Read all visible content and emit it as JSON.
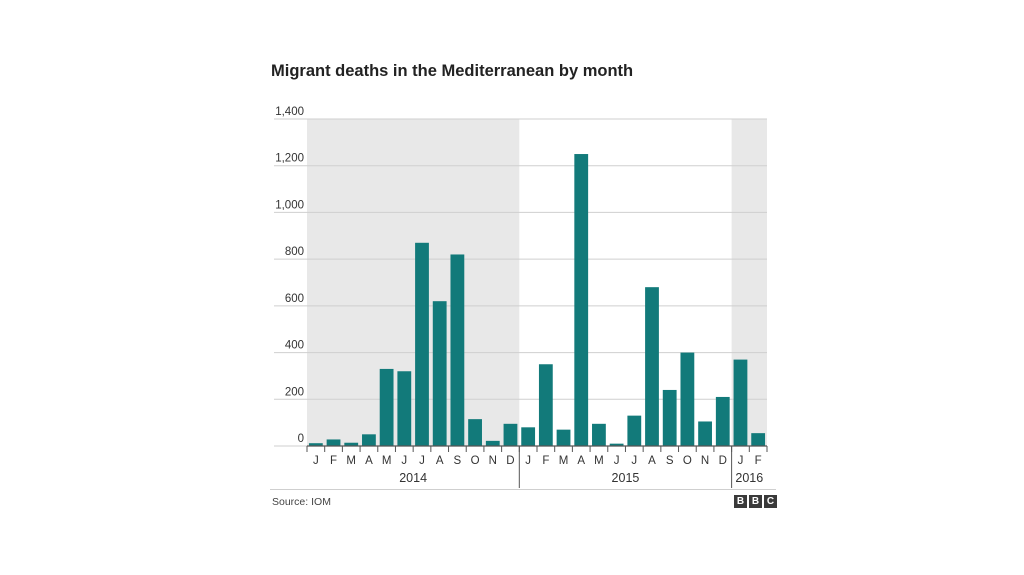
{
  "title": "Migrant deaths in the Mediterranean by month",
  "source": "Source: IOM",
  "logo": [
    "B",
    "B",
    "C"
  ],
  "colors": {
    "bar": "#127a7a",
    "shade": "#e8e8e8",
    "grid": "#cfcfcf",
    "axis": "#555555"
  },
  "chart_data": {
    "type": "bar",
    "title": "Migrant deaths in the Mediterranean by month",
    "xlabel": "",
    "ylabel": "",
    "ylim": [
      0,
      1400
    ],
    "yticks": [
      0,
      200,
      400,
      600,
      800,
      1000,
      1200,
      1400
    ],
    "ytick_labels": [
      "0",
      "200",
      "400",
      "600",
      "800",
      "1,000",
      "1,200",
      "1,400"
    ],
    "grid": true,
    "categories": [
      "J",
      "F",
      "M",
      "A",
      "M",
      "J",
      "J",
      "A",
      "S",
      "O",
      "N",
      "D",
      "J",
      "F",
      "M",
      "A",
      "M",
      "J",
      "J",
      "A",
      "S",
      "O",
      "N",
      "D",
      "J",
      "F"
    ],
    "values": [
      12,
      28,
      14,
      50,
      330,
      320,
      870,
      620,
      820,
      115,
      22,
      95,
      80,
      350,
      70,
      1250,
      95,
      10,
      130,
      680,
      240,
      400,
      105,
      210,
      370,
      55
    ],
    "year_groups": [
      {
        "label": "2014",
        "count": 12,
        "shaded": true
      },
      {
        "label": "2015",
        "count": 12,
        "shaded": false
      },
      {
        "label": "2016",
        "count": 2,
        "shaded": true
      }
    ]
  }
}
